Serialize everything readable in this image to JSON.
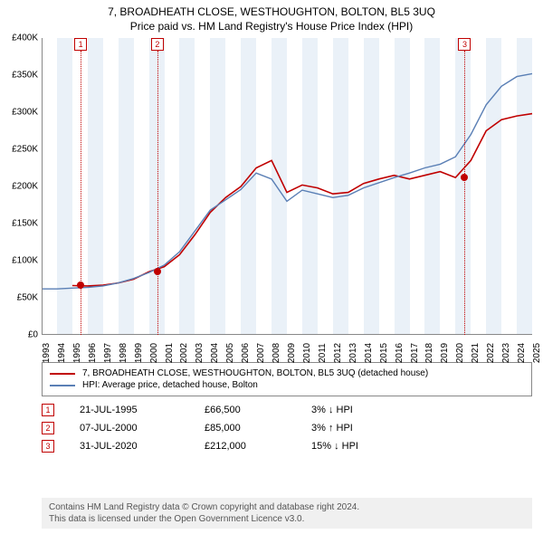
{
  "title_line1": "7, BROADHEATH CLOSE, WESTHOUGHTON, BOLTON, BL5 3UQ",
  "title_line2": "Price paid vs. HM Land Registry's House Price Index (HPI)",
  "chart": {
    "type": "line",
    "background_color": "#ffffff",
    "band_color": "#eaf1f8",
    "ylabel_prefix": "£",
    "ylim": [
      0,
      400000
    ],
    "ytick_step": 50000,
    "yticks": [
      "£0",
      "£50K",
      "£100K",
      "£150K",
      "£200K",
      "£250K",
      "£300K",
      "£350K",
      "£400K"
    ],
    "x_years": [
      1993,
      1994,
      1995,
      1996,
      1997,
      1998,
      1999,
      2000,
      2001,
      2002,
      2003,
      2004,
      2005,
      2006,
      2007,
      2008,
      2009,
      2010,
      2011,
      2012,
      2013,
      2014,
      2015,
      2016,
      2017,
      2018,
      2019,
      2020,
      2021,
      2022,
      2023,
      2024,
      2025
    ],
    "series": [
      {
        "name": "property",
        "color": "#c00000",
        "line_width": 1.6,
        "yvals": [
          null,
          null,
          66500,
          66000,
          67000,
          70000,
          75000,
          85000,
          92000,
          108000,
          135000,
          165000,
          185000,
          200000,
          225000,
          235000,
          192000,
          202000,
          198000,
          190000,
          192000,
          204000,
          210000,
          215000,
          210000,
          215000,
          220000,
          212000,
          235000,
          275000,
          290000,
          295000,
          298000
        ]
      },
      {
        "name": "hpi",
        "color": "#5a7fb5",
        "line_width": 1.4,
        "yvals": [
          62000,
          62000,
          63000,
          64000,
          66000,
          70000,
          76000,
          84000,
          94000,
          112000,
          140000,
          168000,
          182000,
          196000,
          218000,
          210000,
          180000,
          195000,
          190000,
          185000,
          188000,
          198000,
          205000,
          212000,
          218000,
          225000,
          230000,
          240000,
          270000,
          310000,
          335000,
          348000,
          352000
        ]
      }
    ],
    "markers": [
      {
        "num": "1",
        "year": 1995.55,
        "price": 66500
      },
      {
        "num": "2",
        "year": 2000.55,
        "price": 85000
      },
      {
        "num": "3",
        "year": 2020.6,
        "price": 212000
      }
    ]
  },
  "legend": {
    "items": [
      {
        "color": "#c00000",
        "label": "7, BROADHEATH CLOSE, WESTHOUGHTON, BOLTON, BL5 3UQ (detached house)"
      },
      {
        "color": "#5a7fb5",
        "label": "HPI: Average price, detached house, Bolton"
      }
    ]
  },
  "marker_rows": [
    {
      "num": "1",
      "date": "21-JUL-1995",
      "price": "£66,500",
      "diff": "3% ↓ HPI"
    },
    {
      "num": "2",
      "date": "07-JUL-2000",
      "price": "£85,000",
      "diff": "3% ↑ HPI"
    },
    {
      "num": "3",
      "date": "31-JUL-2020",
      "price": "£212,000",
      "diff": "15% ↓ HPI"
    }
  ],
  "footer_line1": "Contains HM Land Registry data © Crown copyright and database right 2024.",
  "footer_line2": "This data is licensed under the Open Government Licence v3.0."
}
